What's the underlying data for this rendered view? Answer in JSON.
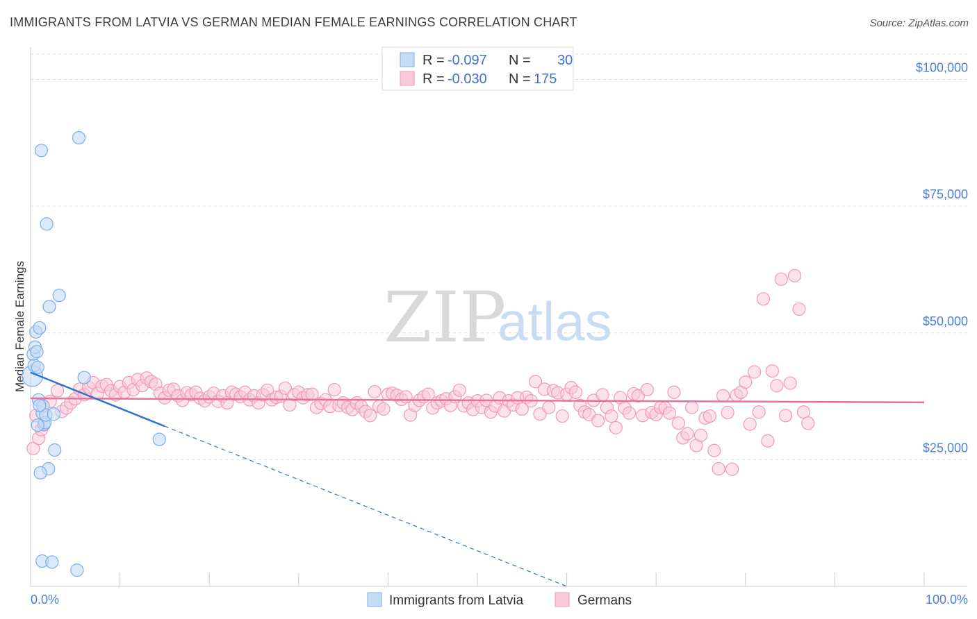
{
  "title": "IMMIGRANTS FROM LATVIA VS GERMAN MEDIAN FEMALE EARNINGS CORRELATION CHART",
  "source": "Source: ZipAtlas.com",
  "watermark": {
    "zip": "ZIP",
    "atlas": "atlas"
  },
  "legend": {
    "rows": [
      {
        "r_label": "R =",
        "r_value": "-0.097",
        "n_label": "N =",
        "n_value": "30",
        "color": "#7aaee8",
        "fill": "#c5dbf6"
      },
      {
        "r_label": "R =",
        "r_value": "-0.030",
        "n_label": "N =",
        "n_value": "175",
        "color": "#ef9ab6",
        "fill": "#f8cbda"
      }
    ]
  },
  "colors": {
    "latvia_stroke": "#7aaee8",
    "latvia_fill": "#c5dbf6",
    "latvia_line": "#2f6fd0",
    "german_stroke": "#ef9ab6",
    "german_fill": "#f8cbda",
    "german_line": "#e8709a",
    "grid": "#dcdcdc",
    "axis_text": "#4a7fd6"
  },
  "chart_data": {
    "type": "scatter",
    "title": "IMMIGRANTS FROM LATVIA VS GERMAN MEDIAN FEMALE EARNINGS CORRELATION CHART",
    "xlabel": "",
    "ylabel": "Median Female Earnings",
    "xlim": [
      0,
      100
    ],
    "ylim": [
      0,
      105000
    ],
    "x_tick_labels": [
      "0.0%",
      "100.0%"
    ],
    "y_ticks": [
      25000,
      50000,
      75000,
      100000
    ],
    "y_tick_labels": [
      "$25,000",
      "$50,000",
      "$75,000",
      "$100,000"
    ],
    "grid": true,
    "legend_position": "top-center",
    "series": [
      {
        "name": "Immigrants from Latvia",
        "R": -0.097,
        "N": 30,
        "trend": {
          "x": [
            0,
            15
          ],
          "y": [
            42200,
            31600
          ],
          "dashed_extension": {
            "x": [
              15,
              60
            ],
            "y": [
              31600,
              0
            ]
          }
        },
        "points": [
          [
            0.2,
            41500
          ],
          [
            0.3,
            45800
          ],
          [
            0.4,
            43600
          ],
          [
            0.5,
            47200
          ],
          [
            0.6,
            50200
          ],
          [
            0.7,
            46300
          ],
          [
            0.8,
            43200
          ],
          [
            0.9,
            36800
          ],
          [
            1.0,
            51000
          ],
          [
            1.2,
            86000
          ],
          [
            1.3,
            34200
          ],
          [
            1.4,
            35600
          ],
          [
            1.5,
            31900
          ],
          [
            1.6,
            32300
          ],
          [
            1.7,
            33800
          ],
          [
            2.0,
            23200
          ],
          [
            1.1,
            22400
          ],
          [
            1.8,
            71500
          ],
          [
            2.1,
            55200
          ],
          [
            3.2,
            57400
          ],
          [
            2.6,
            34000
          ],
          [
            2.7,
            26900
          ],
          [
            5.4,
            88500
          ],
          [
            6.0,
            41200
          ],
          [
            14.4,
            29000
          ],
          [
            1.3,
            5000
          ],
          [
            2.4,
            4800
          ],
          [
            5.2,
            3200
          ],
          [
            1.0,
            35700
          ],
          [
            0.8,
            31800
          ]
        ]
      },
      {
        "name": "Germans",
        "R": -0.03,
        "N": 175,
        "trend": {
          "x": [
            0,
            100
          ],
          "y": [
            37100,
            36300
          ]
        },
        "points": [
          [
            0.3,
            27200
          ],
          [
            0.6,
            33700
          ],
          [
            0.9,
            29200
          ],
          [
            1.2,
            30900
          ],
          [
            1.5,
            32000
          ],
          [
            2.2,
            36500
          ],
          [
            3.0,
            38600
          ],
          [
            3.5,
            34500
          ],
          [
            4.0,
            35200
          ],
          [
            4.5,
            36200
          ],
          [
            5.0,
            37000
          ],
          [
            5.5,
            38900
          ],
          [
            6.0,
            37800
          ],
          [
            6.5,
            39300
          ],
          [
            7.0,
            40200
          ],
          [
            7.5,
            38100
          ],
          [
            8.0,
            39500
          ],
          [
            8.5,
            39800
          ],
          [
            9.0,
            38600
          ],
          [
            9.5,
            37800
          ],
          [
            10.0,
            39400
          ],
          [
            10.5,
            38300
          ],
          [
            11.0,
            40200
          ],
          [
            11.5,
            38800
          ],
          [
            12.0,
            40800
          ],
          [
            12.5,
            39600
          ],
          [
            13.0,
            41100
          ],
          [
            13.5,
            40400
          ],
          [
            14.0,
            39900
          ],
          [
            14.5,
            38100
          ],
          [
            15.0,
            37200
          ],
          [
            15.5,
            38700
          ],
          [
            16.0,
            38900
          ],
          [
            16.5,
            37600
          ],
          [
            17.0,
            36700
          ],
          [
            17.5,
            38200
          ],
          [
            18.0,
            37800
          ],
          [
            18.5,
            38300
          ],
          [
            19.0,
            37100
          ],
          [
            19.5,
            36600
          ],
          [
            20.0,
            37400
          ],
          [
            20.5,
            38100
          ],
          [
            21.0,
            36500
          ],
          [
            21.5,
            37600
          ],
          [
            22.0,
            36200
          ],
          [
            22.5,
            38300
          ],
          [
            23.0,
            37900
          ],
          [
            23.5,
            37400
          ],
          [
            24.0,
            38300
          ],
          [
            24.5,
            36800
          ],
          [
            25.0,
            37600
          ],
          [
            25.5,
            36200
          ],
          [
            26.0,
            37800
          ],
          [
            26.5,
            38700
          ],
          [
            27.0,
            36800
          ],
          [
            27.5,
            37300
          ],
          [
            28.0,
            37500
          ],
          [
            28.5,
            39100
          ],
          [
            29.0,
            35800
          ],
          [
            29.5,
            37800
          ],
          [
            30.0,
            38300
          ],
          [
            30.5,
            37200
          ],
          [
            31.0,
            37800
          ],
          [
            31.5,
            37900
          ],
          [
            32.0,
            35300
          ],
          [
            32.5,
            36100
          ],
          [
            33.0,
            36800
          ],
          [
            33.5,
            35500
          ],
          [
            34.0,
            38800
          ],
          [
            34.5,
            35700
          ],
          [
            35.0,
            36200
          ],
          [
            35.5,
            35300
          ],
          [
            36.0,
            34900
          ],
          [
            36.5,
            36200
          ],
          [
            37.0,
            35500
          ],
          [
            37.5,
            34500
          ],
          [
            38.0,
            33700
          ],
          [
            38.5,
            38400
          ],
          [
            39.0,
            35500
          ],
          [
            39.5,
            35000
          ],
          [
            40.0,
            37900
          ],
          [
            40.5,
            38100
          ],
          [
            41.0,
            37700
          ],
          [
            41.5,
            36900
          ],
          [
            42.0,
            37400
          ],
          [
            42.5,
            33800
          ],
          [
            43.0,
            35700
          ],
          [
            43.5,
            36700
          ],
          [
            44.0,
            37400
          ],
          [
            44.5,
            37900
          ],
          [
            45.0,
            35200
          ],
          [
            45.5,
            36200
          ],
          [
            46.0,
            36600
          ],
          [
            46.5,
            37000
          ],
          [
            47.0,
            35700
          ],
          [
            47.5,
            37400
          ],
          [
            48.0,
            38700
          ],
          [
            48.5,
            35600
          ],
          [
            49.0,
            36200
          ],
          [
            49.5,
            34900
          ],
          [
            50.0,
            36600
          ],
          [
            50.5,
            35300
          ],
          [
            51.0,
            36700
          ],
          [
            51.5,
            34400
          ],
          [
            52.0,
            35600
          ],
          [
            52.5,
            37200
          ],
          [
            53.0,
            34600
          ],
          [
            53.5,
            36600
          ],
          [
            54.0,
            35800
          ],
          [
            54.5,
            37200
          ],
          [
            55.0,
            35000
          ],
          [
            55.5,
            37300
          ],
          [
            56.0,
            36600
          ],
          [
            56.5,
            40400
          ],
          [
            57.0,
            34000
          ],
          [
            57.5,
            38900
          ],
          [
            58.0,
            35300
          ],
          [
            58.5,
            38600
          ],
          [
            59.0,
            38200
          ],
          [
            59.5,
            33600
          ],
          [
            60.0,
            37900
          ],
          [
            60.5,
            39200
          ],
          [
            61.0,
            38300
          ],
          [
            61.5,
            35700
          ],
          [
            62.0,
            34400
          ],
          [
            62.5,
            33900
          ],
          [
            63.0,
            36700
          ],
          [
            63.5,
            32700
          ],
          [
            64.0,
            37800
          ],
          [
            64.5,
            35300
          ],
          [
            65.0,
            33600
          ],
          [
            65.5,
            31300
          ],
          [
            66.0,
            37200
          ],
          [
            66.5,
            35200
          ],
          [
            67.0,
            34200
          ],
          [
            67.5,
            38000
          ],
          [
            68.0,
            37600
          ],
          [
            68.5,
            33700
          ],
          [
            69.0,
            38800
          ],
          [
            69.5,
            34300
          ],
          [
            70.0,
            33900
          ],
          [
            70.5,
            35300
          ],
          [
            71.0,
            35200
          ],
          [
            71.5,
            34200
          ],
          [
            72.0,
            38300
          ],
          [
            72.5,
            32200
          ],
          [
            73.0,
            29300
          ],
          [
            73.5,
            30100
          ],
          [
            74.0,
            35300
          ],
          [
            74.5,
            27800
          ],
          [
            75.0,
            29800
          ],
          [
            75.5,
            33200
          ],
          [
            76.0,
            33600
          ],
          [
            76.5,
            26800
          ],
          [
            77.0,
            23200
          ],
          [
            77.5,
            37600
          ],
          [
            78.0,
            34300
          ],
          [
            78.5,
            23100
          ],
          [
            79.0,
            37700
          ],
          [
            79.5,
            38300
          ],
          [
            80.0,
            40300
          ],
          [
            80.5,
            32000
          ],
          [
            81.0,
            42300
          ],
          [
            81.5,
            34400
          ],
          [
            82.0,
            56700
          ],
          [
            82.5,
            28700
          ],
          [
            83.0,
            42500
          ],
          [
            83.5,
            39600
          ],
          [
            84.0,
            60600
          ],
          [
            84.5,
            33700
          ],
          [
            85.0,
            40100
          ],
          [
            85.5,
            61300
          ],
          [
            86.0,
            54700
          ],
          [
            86.5,
            34400
          ],
          [
            87.0,
            32200
          ]
        ]
      }
    ]
  },
  "bottom_legend": [
    {
      "label": "Immigrants from Latvia"
    },
    {
      "label": "Germans"
    }
  ]
}
